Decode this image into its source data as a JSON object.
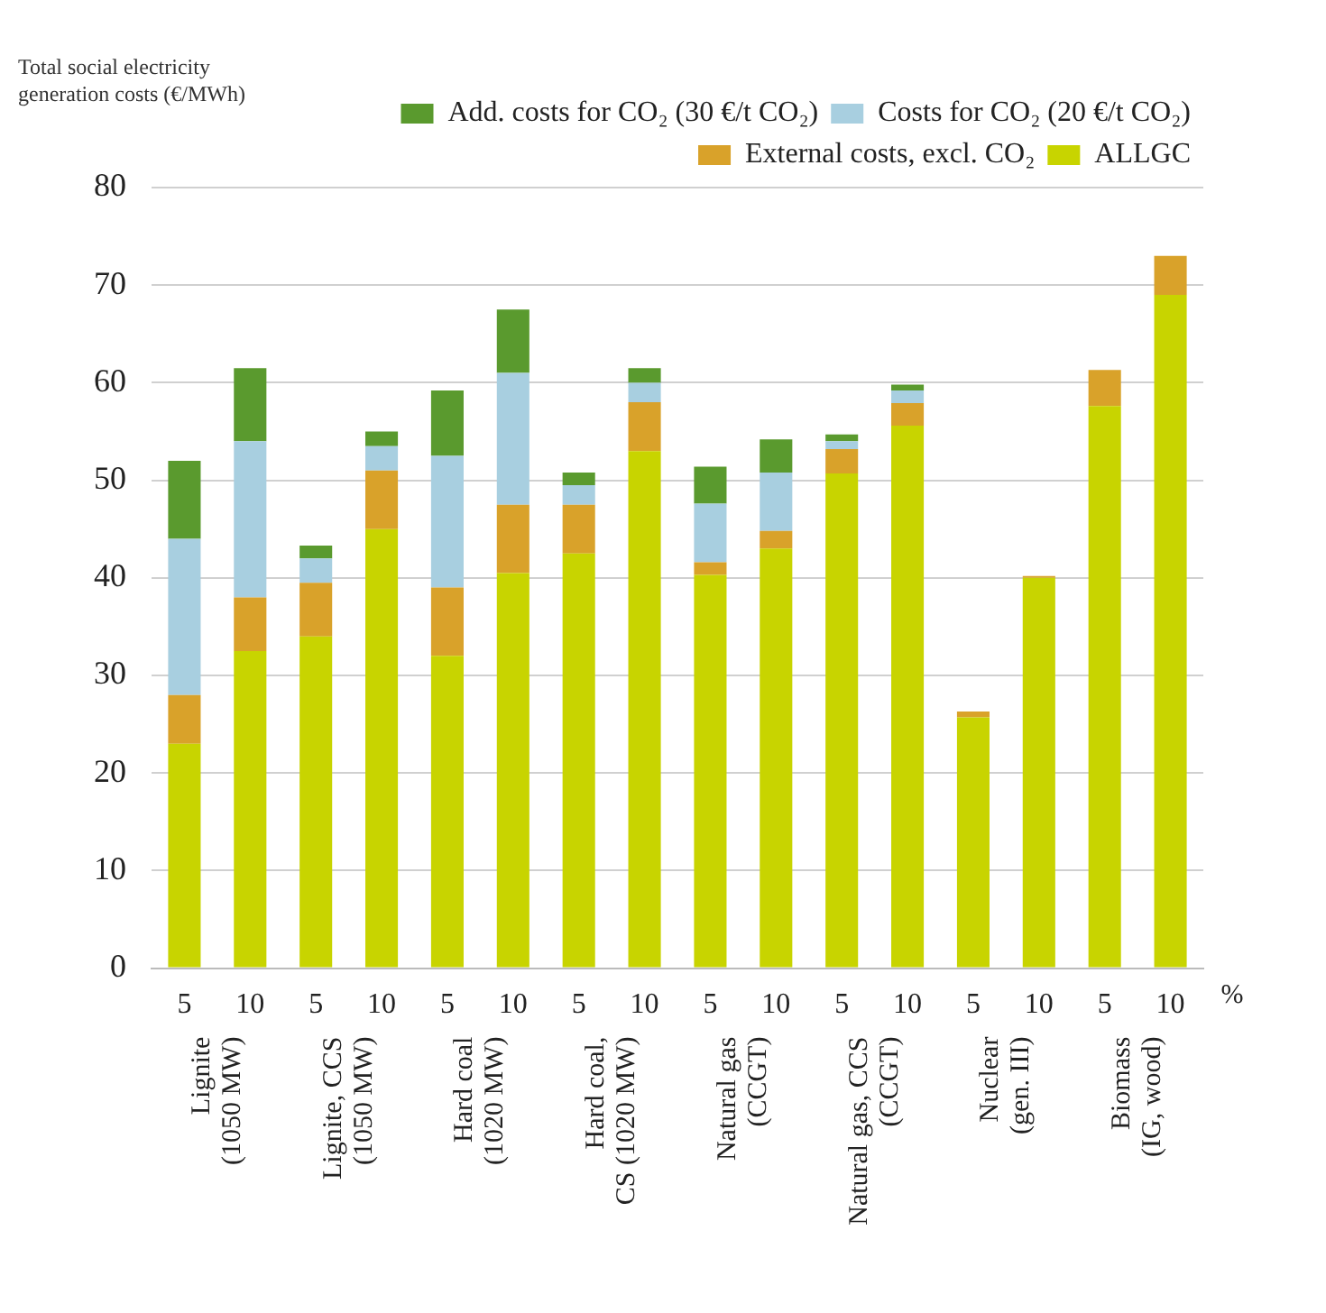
{
  "chart_data": {
    "type": "bar",
    "stacked": true,
    "ylabel": "Total social electricity generation costs (€/MWh)",
    "xlabel": "%",
    "categories": [
      "5",
      "10",
      "5",
      "10",
      "5",
      "10",
      "5",
      "10",
      "5",
      "10",
      "5",
      "10",
      "5",
      "10",
      "5",
      "10"
    ],
    "annotations": [
      "Lignite\n(1050 MW)",
      "Lignite, CCS\n(1050 MW)",
      "Hard coal\n(1020 MW)",
      "Hard coal,\nCS (1020 MW)",
      "Natural gas\n(CCGT)",
      "Natural gas, CCS\n(CCGT)",
      "Nuclear\n(gen. III)",
      "Biomass\n(IG, wood)"
    ],
    "series": [
      {
        "name": "ALLGC",
        "color": "#c8d400",
        "values": [
          23,
          32.5,
          34,
          45,
          32,
          40.5,
          42.5,
          53,
          40.3,
          43,
          50.7,
          55.6,
          25.7,
          40,
          57.6,
          69
        ]
      },
      {
        "name": "External costs, excl. CO₂",
        "color": "#d9a22a",
        "values": [
          5,
          5.5,
          5.5,
          6,
          7,
          7,
          5,
          5,
          1.3,
          1.8,
          2.5,
          2.3,
          0.6,
          0.2,
          3.7,
          4
        ]
      },
      {
        "name": "Costs for CO₂ (20 €/t CO₂)",
        "color": "#a8cfe0",
        "values": [
          16,
          16,
          2.5,
          2.5,
          13.5,
          13.5,
          2,
          2,
          6,
          6,
          0.8,
          1.3,
          0,
          0,
          0,
          0
        ]
      },
      {
        "name": "Add. costs for CO₂ (30 €/t CO₂)",
        "color": "#5a9a2e",
        "values": [
          8,
          7.5,
          1.3,
          1.5,
          6.7,
          6.5,
          1.3,
          1.5,
          3.8,
          3.4,
          0.7,
          0.6,
          0,
          0,
          0,
          0
        ]
      }
    ],
    "ylim": [
      0,
      80
    ],
    "yticks": [
      0,
      10,
      20,
      30,
      40,
      50,
      60,
      70,
      80
    ],
    "grid": "y",
    "legend": "top right"
  }
}
